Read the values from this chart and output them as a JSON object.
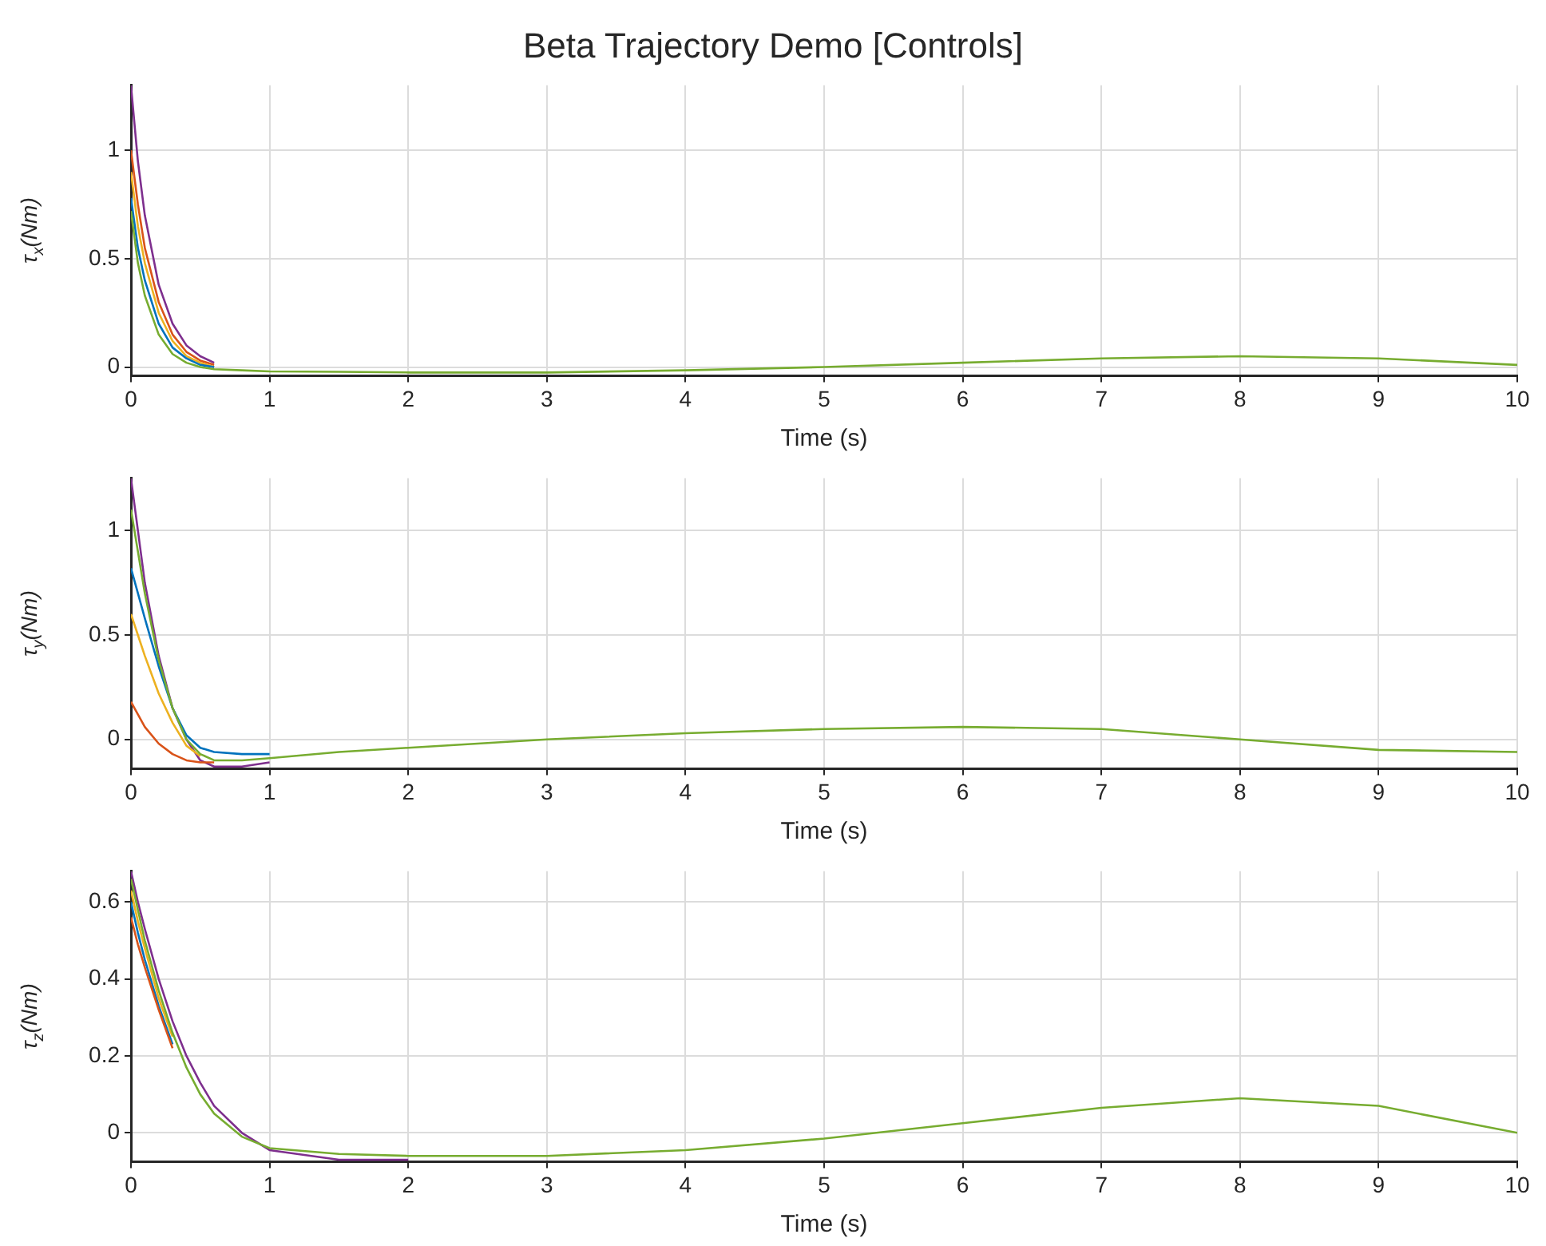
{
  "chart_data": [
    {
      "type": "line",
      "title": "Beta Trajectory Demo [Controls]",
      "xlabel": "Time (s)",
      "ylabel": "τ$_{x}$(Nm)",
      "x": [
        0,
        0.05,
        0.1,
        0.2,
        0.3,
        0.4,
        0.5,
        0.6,
        0.8,
        1,
        1.5,
        2,
        3,
        4,
        5,
        6,
        7,
        8,
        9,
        10
      ],
      "xlim": [
        0,
        10
      ],
      "xticks": [
        0,
        1,
        2,
        3,
        4,
        5,
        6,
        7,
        8,
        9,
        10
      ],
      "ylim": [
        -0.04,
        1.3
      ],
      "yticks": [
        0,
        0.5,
        1
      ],
      "grid": true,
      "marker": "none",
      "legend": false,
      "series": [
        {
          "color": "#77ac30",
          "values": [
            0.72,
            0.48,
            0.33,
            0.15,
            0.06,
            0.02,
            0.0,
            -0.01,
            -0.015,
            -0.02,
            -0.022,
            -0.025,
            -0.025,
            -0.015,
            0.0,
            0.02,
            0.04,
            0.05,
            0.04,
            0.01
          ]
        },
        {
          "color": "#0072bd",
          "values": [
            0.78,
            0.55,
            0.4,
            0.2,
            0.09,
            0.04,
            0.01,
            0.0,
            null,
            null,
            null,
            null,
            null,
            null,
            null,
            null,
            null,
            null,
            null,
            null
          ]
        },
        {
          "color": "#edb120",
          "values": [
            0.9,
            0.65,
            0.48,
            0.25,
            0.12,
            0.05,
            0.02,
            0.0,
            null,
            null,
            null,
            null,
            null,
            null,
            null,
            null,
            null,
            null,
            null,
            null
          ]
        },
        {
          "color": "#d95319",
          "values": [
            1.0,
            0.75,
            0.55,
            0.3,
            0.15,
            0.07,
            0.03,
            0.01,
            null,
            null,
            null,
            null,
            null,
            null,
            null,
            null,
            null,
            null,
            null,
            null
          ]
        },
        {
          "color": "#7e2f8e",
          "values": [
            1.3,
            0.95,
            0.7,
            0.38,
            0.2,
            0.1,
            0.05,
            0.02,
            null,
            null,
            null,
            null,
            null,
            null,
            null,
            null,
            null,
            null,
            null,
            null
          ]
        }
      ]
    },
    {
      "type": "line",
      "xlabel": "Time (s)",
      "ylabel": "τ$_{y}$(Nm)",
      "x": [
        0,
        0.05,
        0.1,
        0.2,
        0.3,
        0.4,
        0.5,
        0.6,
        0.8,
        1,
        1.5,
        2,
        3,
        4,
        5,
        6,
        7,
        8,
        9,
        10
      ],
      "xlim": [
        0,
        10
      ],
      "xticks": [
        0,
        1,
        2,
        3,
        4,
        5,
        6,
        7,
        8,
        9,
        10
      ],
      "ylim": [
        -0.14,
        1.25
      ],
      "yticks": [
        0,
        0.5,
        1
      ],
      "grid": true,
      "marker": "none",
      "legend": false,
      "series": [
        {
          "color": "#77ac30",
          "values": [
            1.1,
            0.9,
            0.7,
            0.38,
            0.15,
            0.0,
            -0.07,
            -0.1,
            -0.1,
            -0.09,
            -0.06,
            -0.04,
            0.0,
            0.03,
            0.05,
            0.06,
            0.05,
            0.0,
            -0.05,
            -0.06
          ]
        },
        {
          "color": "#d95319",
          "values": [
            0.18,
            0.12,
            0.06,
            -0.02,
            -0.07,
            -0.1,
            -0.11,
            -0.11,
            null,
            null,
            null,
            null,
            null,
            null,
            null,
            null,
            null,
            null,
            null,
            null
          ]
        },
        {
          "color": "#edb120",
          "values": [
            0.6,
            0.5,
            0.4,
            0.22,
            0.08,
            -0.03,
            -0.08,
            null,
            null,
            null,
            null,
            null,
            null,
            null,
            null,
            null,
            null,
            null,
            null,
            null
          ]
        },
        {
          "color": "#0072bd",
          "values": [
            0.82,
            0.7,
            0.58,
            0.35,
            0.15,
            0.02,
            -0.04,
            -0.06,
            -0.07,
            -0.07,
            null,
            null,
            null,
            null,
            null,
            null,
            null,
            null,
            null,
            null
          ]
        },
        {
          "color": "#7e2f8e",
          "values": [
            1.25,
            1.0,
            0.75,
            0.4,
            0.15,
            0.0,
            -0.1,
            -0.13,
            -0.13,
            -0.11,
            null,
            null,
            null,
            null,
            null,
            null,
            null,
            null,
            null,
            null
          ]
        }
      ]
    },
    {
      "type": "line",
      "xlabel": "Time (s)",
      "ylabel": "τ$_{z}$(Nm)",
      "x": [
        0,
        0.05,
        0.1,
        0.2,
        0.3,
        0.4,
        0.5,
        0.6,
        0.8,
        1,
        1.5,
        2,
        3,
        4,
        5,
        6,
        7,
        8,
        9,
        10
      ],
      "xlim": [
        0,
        10
      ],
      "xticks": [
        0,
        1,
        2,
        3,
        4,
        5,
        6,
        7,
        8,
        9,
        10
      ],
      "ylim": [
        -0.075,
        0.68
      ],
      "yticks": [
        0,
        0.2,
        0.4,
        0.6
      ],
      "grid": true,
      "marker": "none",
      "legend": false,
      "series": [
        {
          "color": "#77ac30",
          "values": [
            0.66,
            0.58,
            0.5,
            0.37,
            0.26,
            0.17,
            0.1,
            0.05,
            -0.01,
            -0.04,
            -0.055,
            -0.06,
            -0.06,
            -0.045,
            -0.015,
            0.025,
            0.065,
            0.09,
            0.07,
            0.0
          ]
        },
        {
          "color": "#d95319",
          "values": [
            0.56,
            0.49,
            0.43,
            0.32,
            0.22,
            null,
            null,
            null,
            null,
            null,
            null,
            null,
            null,
            null,
            null,
            null,
            null,
            null,
            null,
            null
          ]
        },
        {
          "color": "#0072bd",
          "values": [
            0.6,
            0.52,
            0.45,
            0.33,
            0.23,
            null,
            null,
            null,
            null,
            null,
            null,
            null,
            null,
            null,
            null,
            null,
            null,
            null,
            null,
            null
          ]
        },
        {
          "color": "#edb120",
          "values": [
            0.63,
            0.55,
            0.48,
            0.35,
            0.25,
            null,
            null,
            null,
            null,
            null,
            null,
            null,
            null,
            null,
            null,
            null,
            null,
            null,
            null,
            null
          ]
        },
        {
          "color": "#7e2f8e",
          "values": [
            0.68,
            0.6,
            0.53,
            0.4,
            0.29,
            0.2,
            0.13,
            0.07,
            0.0,
            -0.045,
            -0.07,
            -0.07,
            null,
            null,
            null,
            null,
            null,
            null,
            null,
            null
          ]
        }
      ]
    }
  ]
}
